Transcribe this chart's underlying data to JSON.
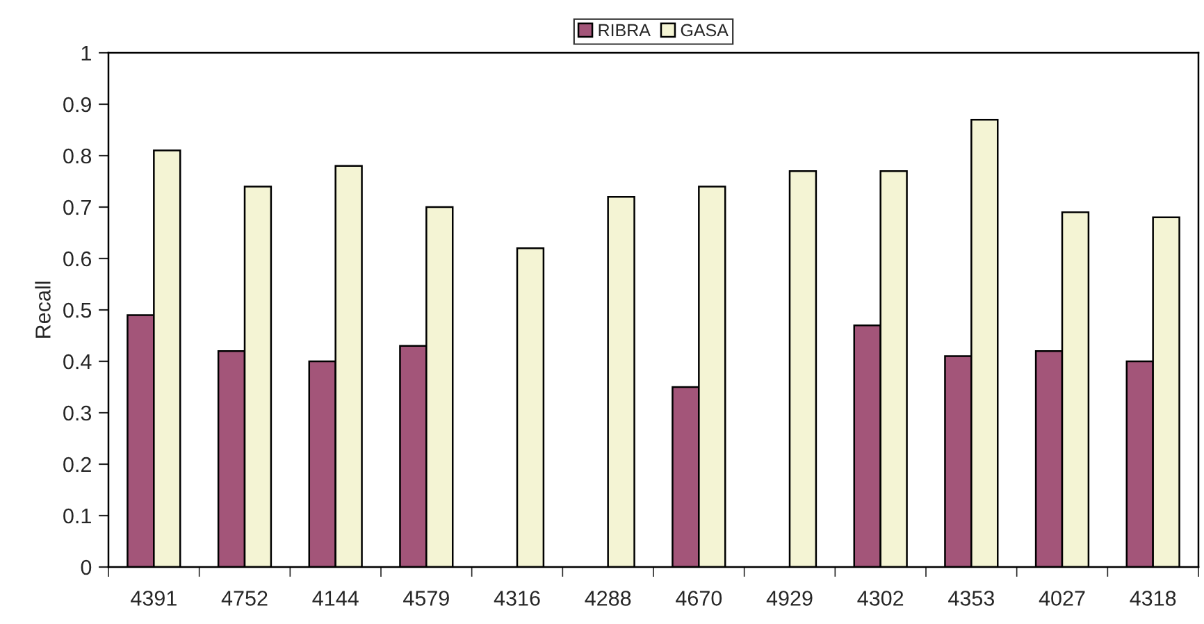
{
  "chart_data": {
    "type": "bar",
    "ylabel": "Recall",
    "categories": [
      "4391",
      "4752",
      "4144",
      "4579",
      "4316",
      "4288",
      "4670",
      "4929",
      "4302",
      "4353",
      "4027",
      "4318"
    ],
    "series": [
      {
        "name": "RIBRA",
        "color": "#a35579",
        "values": [
          0.49,
          0.42,
          0.4,
          0.43,
          null,
          null,
          0.35,
          null,
          0.47,
          0.41,
          0.42,
          0.4
        ]
      },
      {
        "name": "GASA",
        "color": "#f4f4d4",
        "values": [
          0.81,
          0.74,
          0.78,
          0.7,
          0.62,
          0.72,
          0.74,
          0.77,
          0.77,
          0.87,
          0.69,
          0.68
        ]
      }
    ],
    "ylim": [
      0,
      1
    ],
    "yticks": [
      0,
      0.1,
      0.2,
      0.3,
      0.4,
      0.5,
      0.6,
      0.7,
      0.8,
      0.9,
      1
    ],
    "grid": false,
    "legend": "top"
  }
}
